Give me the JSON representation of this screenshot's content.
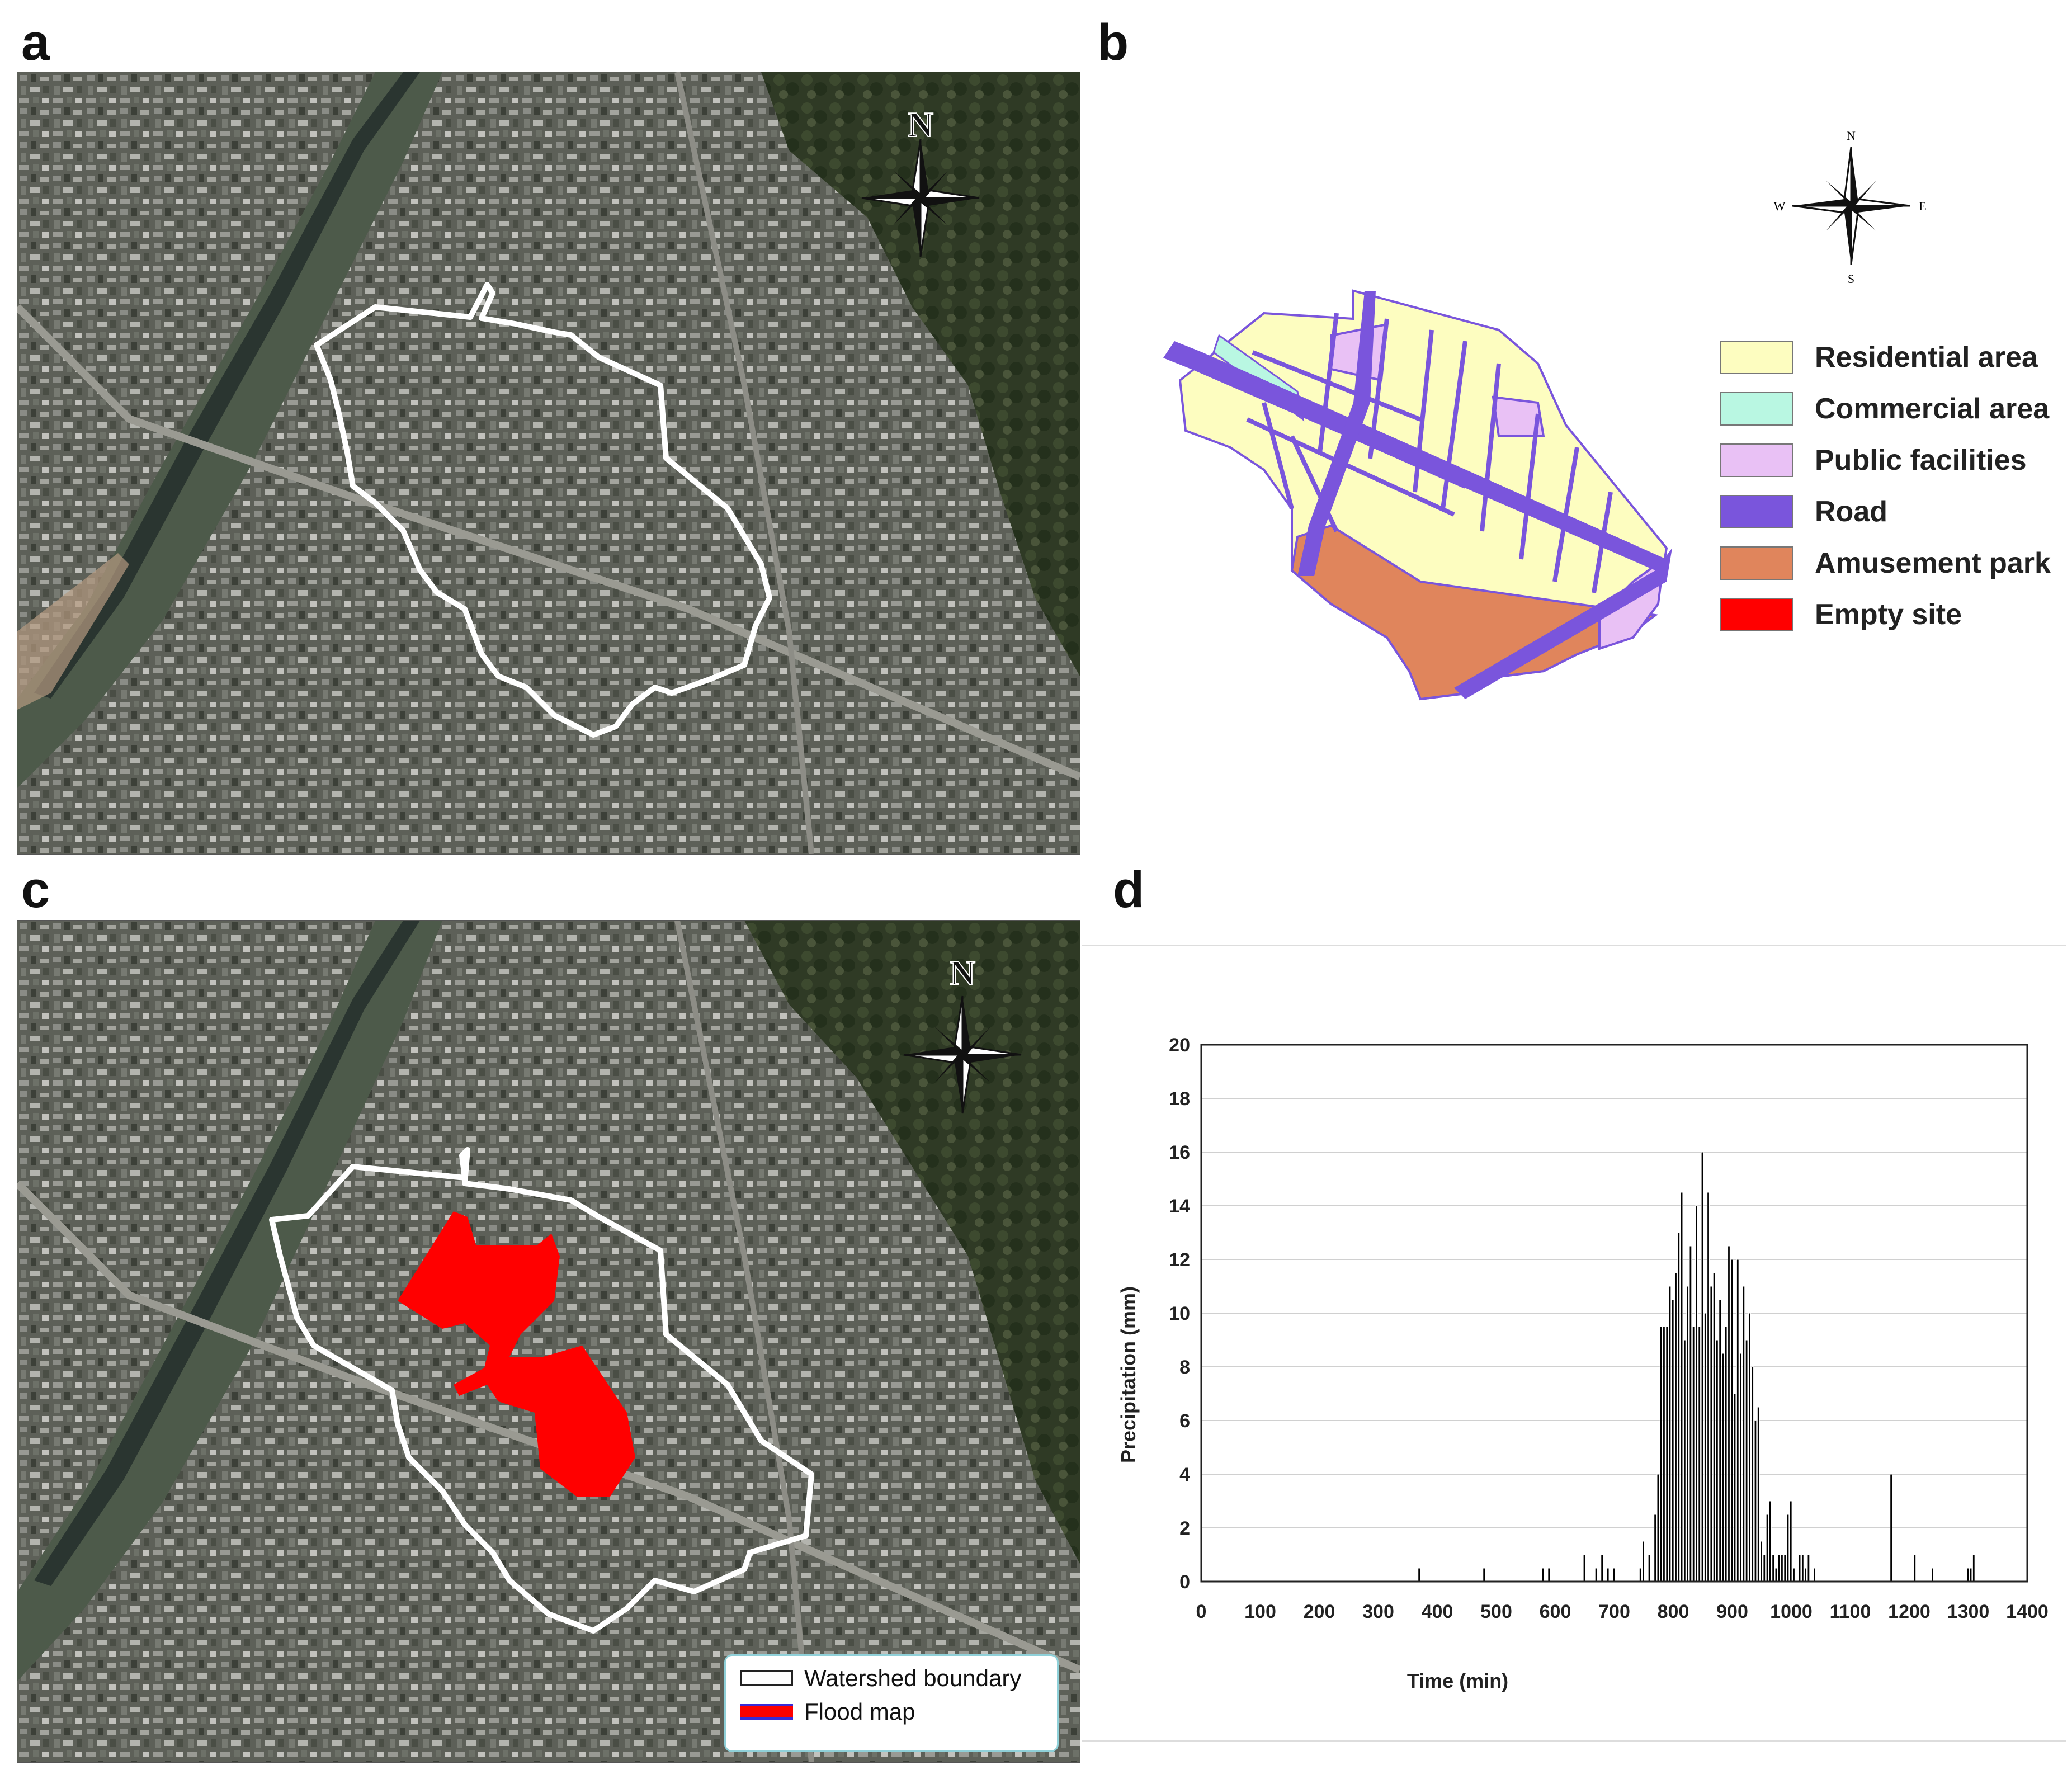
{
  "panels": {
    "a": {
      "label": "a"
    },
    "b": {
      "label": "b"
    },
    "c": {
      "label": "c"
    },
    "d": {
      "label": "d"
    }
  },
  "compass": {
    "n": "N",
    "s": "S",
    "e": "E",
    "w": "W"
  },
  "land_use_legend": [
    {
      "label": "Residential area",
      "color": "#fdfdc0"
    },
    {
      "label": "Commercial area",
      "color": "#b9f7e2"
    },
    {
      "label": "Public facilities",
      "color": "#e9c1f5"
    },
    {
      "label": "Road",
      "color": "#7a55dc"
    },
    {
      "label": "Amusement park",
      "color": "#e0855c"
    },
    {
      "label": "Empty site",
      "color": "#ff0000"
    }
  ],
  "flood_legend": {
    "watershed_label": "Watershed boundary",
    "flood_label": "Flood map",
    "watershed_color": "#ffffff",
    "flood_color": "#ff0000"
  },
  "chart_data": {
    "type": "bar",
    "title": "",
    "xlabel": "Time (min)",
    "ylabel": "Precipitation  (mm)",
    "xlim": [
      0,
      1400
    ],
    "ylim": [
      0,
      20
    ],
    "xticks": [
      0,
      100,
      200,
      300,
      400,
      500,
      600,
      700,
      800,
      900,
      1000,
      1100,
      1200,
      1300,
      1400
    ],
    "yticks": [
      0,
      2,
      4,
      6,
      8,
      10,
      12,
      14,
      16,
      18,
      20
    ],
    "grid": "horizontal",
    "bar_color": "#000000",
    "bar_width_min": 5,
    "x": [
      370,
      480,
      580,
      590,
      650,
      670,
      680,
      690,
      700,
      745,
      750,
      760,
      770,
      775,
      780,
      785,
      790,
      795,
      800,
      805,
      810,
      815,
      820,
      825,
      830,
      835,
      840,
      845,
      850,
      855,
      860,
      865,
      870,
      875,
      880,
      885,
      890,
      895,
      900,
      905,
      910,
      915,
      920,
      925,
      930,
      935,
      940,
      945,
      950,
      955,
      960,
      965,
      970,
      975,
      980,
      985,
      990,
      995,
      1000,
      1005,
      1015,
      1020,
      1025,
      1030,
      1040,
      1170,
      1210,
      1240,
      1300,
      1305,
      1310
    ],
    "values": [
      0.5,
      0.5,
      0.5,
      0.5,
      1.0,
      0.5,
      1.0,
      0.5,
      0.5,
      0.5,
      1.5,
      1.0,
      2.5,
      4.0,
      9.5,
      9.5,
      9.5,
      11.0,
      10.5,
      11.5,
      13.0,
      14.5,
      9.0,
      11.0,
      12.5,
      9.5,
      14.0,
      9.5,
      16.0,
      10.0,
      14.5,
      11.0,
      11.5,
      9.0,
      10.5,
      8.5,
      9.5,
      12.5,
      12.0,
      7.0,
      12.0,
      8.5,
      11.0,
      9.0,
      10.0,
      8.0,
      6.0,
      6.5,
      1.5,
      1.0,
      2.5,
      3.0,
      1.0,
      0.5,
      1.0,
      1.0,
      1.0,
      2.5,
      3.0,
      0.5,
      1.0,
      1.0,
      0.5,
      1.0,
      0.5,
      4.0,
      1.0,
      0.5,
      0.5,
      0.5,
      1.0
    ]
  }
}
